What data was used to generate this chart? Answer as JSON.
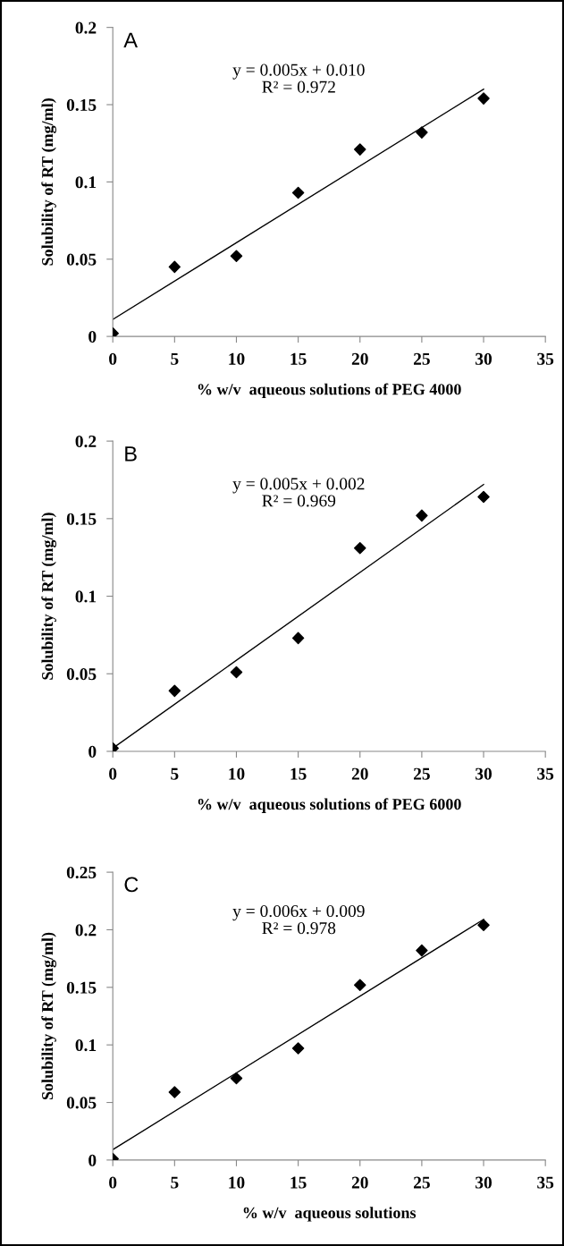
{
  "chart_data": [
    {
      "type": "scatter",
      "xlabel": "% w/v  aqueous solutions of PEG 4000",
      "ylabel": "Solubility of RT (mg/ml)",
      "annotations": [
        "A",
        "y = 0.005x + 0.010\nR² = 0.972"
      ],
      "xlim": [
        0,
        35
      ],
      "xticks": [
        0,
        5,
        10,
        15,
        20,
        25,
        30,
        35
      ],
      "ylim": [
        0,
        0.2
      ],
      "yticks": [
        0,
        0.05,
        0.1,
        0.15,
        0.2
      ],
      "grid": false,
      "legend": false,
      "series": [
        {
          "color": "#000000",
          "marker": "diamond",
          "x": [
            0,
            5,
            10,
            15,
            20,
            25,
            30
          ],
          "values": [
            0.002,
            0.045,
            0.052,
            0.093,
            0.121,
            0.132,
            0.154
          ]
        },
        {
          "type": "line",
          "color": "#000000",
          "x": [
            0,
            30
          ],
          "values": [
            0.011,
            0.16
          ],
          "marker": "none"
        }
      ]
    },
    {
      "type": "scatter",
      "xlabel": "% w/v  aqueous solutions of PEG 6000",
      "ylabel": "Solubility of RT (mg/ml)",
      "annotations": [
        "B",
        "y = 0.005x + 0.002\nR² = 0.969"
      ],
      "xlim": [
        0,
        35
      ],
      "xticks": [
        0,
        5,
        10,
        15,
        20,
        25,
        30,
        35
      ],
      "ylim": [
        0,
        0.2
      ],
      "yticks": [
        0,
        0.05,
        0.1,
        0.15,
        0.2
      ],
      "grid": false,
      "legend": false,
      "series": [
        {
          "color": "#000000",
          "marker": "diamond",
          "x": [
            0,
            5,
            10,
            15,
            20,
            25,
            30
          ],
          "values": [
            0.002,
            0.039,
            0.051,
            0.073,
            0.131,
            0.152,
            0.164
          ]
        },
        {
          "type": "line",
          "color": "#000000",
          "x": [
            0,
            30
          ],
          "values": [
            0.002,
            0.172
          ],
          "marker": "none"
        }
      ]
    },
    {
      "type": "scatter",
      "xlabel": "% w/v  aqueous solutions",
      "ylabel": "Solubility of RT (mg/ml)",
      "annotations": [
        "C",
        "y = 0.006x + 0.009\nR² = 0.978"
      ],
      "xlim": [
        0,
        35
      ],
      "xticks": [
        0,
        5,
        10,
        15,
        20,
        25,
        30,
        35
      ],
      "ylim": [
        0,
        0.25
      ],
      "yticks": [
        0,
        0.05,
        0.1,
        0.15,
        0.2,
        0.25
      ],
      "grid": false,
      "legend": false,
      "series": [
        {
          "color": "#000000",
          "marker": "diamond",
          "x": [
            0,
            5,
            10,
            15,
            20,
            25,
            30
          ],
          "values": [
            0.001,
            0.059,
            0.071,
            0.097,
            0.152,
            0.182,
            0.204
          ]
        },
        {
          "type": "line",
          "color": "#000000",
          "x": [
            0,
            30
          ],
          "values": [
            0.009,
            0.209
          ],
          "marker": "none"
        }
      ]
    }
  ]
}
